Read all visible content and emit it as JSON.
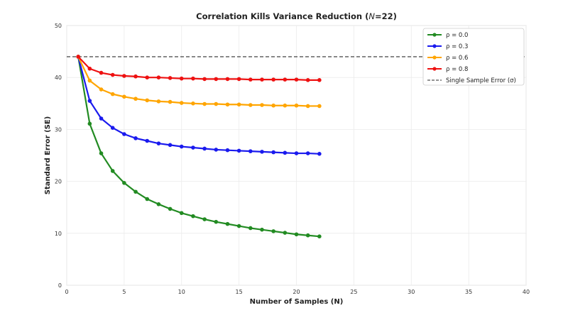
{
  "chart_data": {
    "type": "line",
    "title_prefix": "Correlation Kills Variance Reduction (",
    "title_var": "N",
    "title_suffix": "=22)",
    "xlabel": "Number of Samples (N)",
    "ylabel": "Standard Error (SE)",
    "xlim": [
      0,
      40
    ],
    "ylim": [
      0,
      50
    ],
    "xticks": [
      0,
      5,
      10,
      15,
      20,
      25,
      30,
      35,
      40
    ],
    "yticks": [
      0,
      10,
      20,
      30,
      40,
      50
    ],
    "grid": true,
    "legend_position": "top-right",
    "x": [
      1,
      2,
      3,
      4,
      5,
      6,
      7,
      8,
      9,
      10,
      11,
      12,
      13,
      14,
      15,
      16,
      17,
      18,
      19,
      20,
      21,
      22
    ],
    "series": [
      {
        "name": "ρ = 0.0",
        "color": "#228b22",
        "values": [
          44.0,
          31.1,
          25.4,
          22.0,
          19.7,
          18.0,
          16.6,
          15.6,
          14.7,
          13.9,
          13.3,
          12.7,
          12.2,
          11.8,
          11.4,
          11.0,
          10.7,
          10.4,
          10.1,
          9.8,
          9.6,
          9.4
        ]
      },
      {
        "name": "ρ = 0.3",
        "color": "#1a1aee",
        "values": [
          44.0,
          35.5,
          32.1,
          30.3,
          29.1,
          28.3,
          27.8,
          27.3,
          27.0,
          26.7,
          26.5,
          26.3,
          26.1,
          26.0,
          25.9,
          25.8,
          25.7,
          25.6,
          25.5,
          25.4,
          25.4,
          25.3
        ]
      },
      {
        "name": "ρ = 0.6",
        "color": "#ffa500",
        "values": [
          44.0,
          39.4,
          37.7,
          36.8,
          36.3,
          35.9,
          35.6,
          35.4,
          35.3,
          35.1,
          35.0,
          34.9,
          34.9,
          34.8,
          34.8,
          34.7,
          34.7,
          34.6,
          34.6,
          34.6,
          34.5,
          34.5
        ]
      },
      {
        "name": "ρ = 0.8",
        "color": "#ee1111",
        "values": [
          44.0,
          41.7,
          40.9,
          40.5,
          40.3,
          40.2,
          40.0,
          40.0,
          39.9,
          39.8,
          39.8,
          39.7,
          39.7,
          39.7,
          39.7,
          39.6,
          39.6,
          39.6,
          39.6,
          39.6,
          39.5,
          39.5
        ]
      }
    ],
    "reference_line": {
      "name": "Single Sample Error (σ)",
      "value": 44.0,
      "color": "#555555",
      "style": "dashed"
    }
  }
}
